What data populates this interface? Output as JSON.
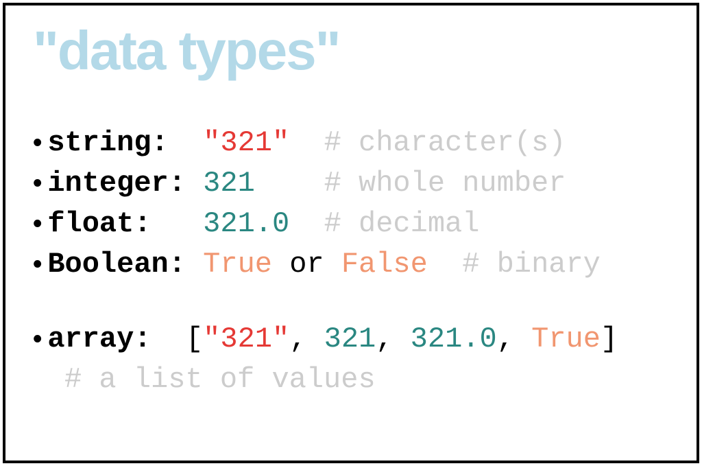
{
  "title": "\"data types\"",
  "colors": {
    "title": "#b3d9e8",
    "label": "#000000",
    "string": "#e53935",
    "number": "#2a8781",
    "boolean": "#f19670",
    "comment": "#cccccc",
    "bracket": "#000000",
    "border": "#000000",
    "background": "#ffffff"
  },
  "typography": {
    "title_fontsize": 80,
    "body_fontsize": 42,
    "title_family": "Verdana",
    "body_family": "Courier New"
  },
  "entries": {
    "string": {
      "label": "string:  ",
      "value": "\"321\"",
      "comment": "  # character(s)"
    },
    "integer": {
      "label": "integer: ",
      "value": "321",
      "comment": "    # whole number"
    },
    "float": {
      "label": "float:   ",
      "value": "321.0",
      "comment": "  # decimal"
    },
    "boolean": {
      "label": "Boolean: ",
      "true_val": "True",
      "or_text": " or ",
      "false_val": "False",
      "comment": "  # binary"
    },
    "array": {
      "label": "array:  ",
      "open": "[",
      "e0": "\"321\"",
      "s0": ", ",
      "e1": "321",
      "s1": ", ",
      "e2": "321.0",
      "s2": ", ",
      "e3": "True",
      "close": "]",
      "comment": "# a list of values"
    }
  }
}
